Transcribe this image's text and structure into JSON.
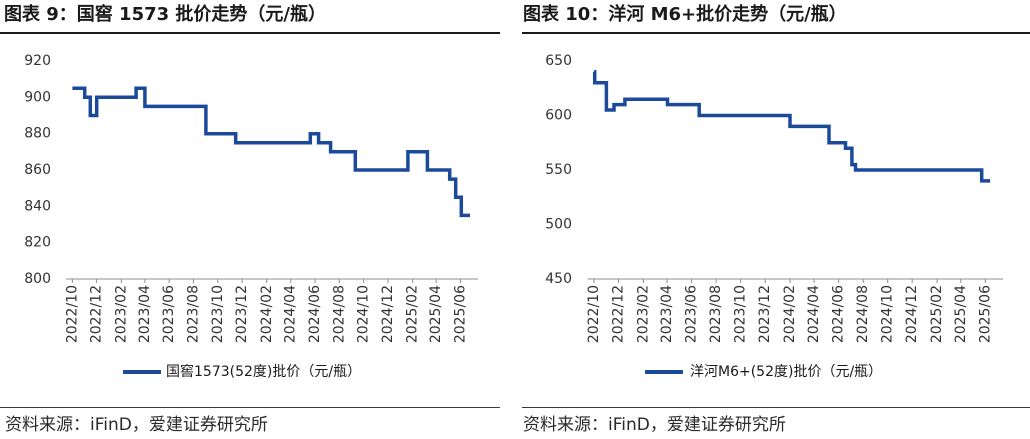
{
  "colors": {
    "line": "#1b4a9b",
    "axis": "#8c8c8c",
    "text": "#1a1a1a"
  },
  "sources": [
    "资料来源：iFinD，爱建证券研究所",
    "资料来源：iFinD，爱建证券研究所"
  ],
  "chart_data": [
    {
      "type": "line",
      "step": true,
      "title": "图表 9：国窖 1573 批价走势（元/瓶）",
      "ylim": [
        800,
        920
      ],
      "xlim": [
        "2022-09-15",
        "2025-07-15"
      ],
      "y_ticks": [
        800,
        820,
        840,
        860,
        880,
        900,
        920
      ],
      "x_ticks": [
        "2022/10",
        "2022/12",
        "2023/02",
        "2023/04",
        "2023/06",
        "2023/08",
        "2023/10",
        "2023/12",
        "2024/02",
        "2024/04",
        "2024/06",
        "2024/08",
        "2024/10",
        "2024/12",
        "2025/02",
        "2025/04",
        "2025/06"
      ],
      "grid": false,
      "legend": "bottom",
      "series": [
        {
          "name": "国窖1573(52度)批价（元/瓶）",
          "x": [
            "2022-10-01",
            "2022-11-01",
            "2022-11-15",
            "2022-12-01",
            "2023-03-10",
            "2023-04-01",
            "2023-09-01",
            "2023-11-15",
            "2024-05-20",
            "2024-06-10",
            "2024-07-10",
            "2024-09-10",
            "2025-01-20",
            "2025-03-10",
            "2025-05-05",
            "2025-05-20",
            "2025-06-03",
            "2025-06-25"
          ],
          "y": [
            905,
            900,
            890,
            900,
            905,
            895,
            880,
            875,
            880,
            875,
            870,
            860,
            870,
            860,
            855,
            845,
            835,
            835
          ]
        }
      ]
    },
    {
      "type": "line",
      "step": true,
      "title": "图表 10：洋河 M6+批价走势（元/瓶）",
      "ylim": [
        450,
        650
      ],
      "xlim": [
        "2022-09-15",
        "2025-07-15"
      ],
      "y_ticks": [
        450,
        500,
        550,
        600,
        650
      ],
      "x_ticks": [
        "2022/10",
        "2022/12",
        "2023/02",
        "2023/04",
        "2023/06",
        "2023/08",
        "2023/10",
        "2023/12",
        "2024/02",
        "2024/04",
        "2024/06",
        "2024/08",
        "2024/10",
        "2024/12",
        "2025/02",
        "2025/04",
        "2025/06"
      ],
      "grid": false,
      "legend": "bottom",
      "series": [
        {
          "name": "洋河M6+(52度)批价（元/瓶）",
          "x": [
            "2022-10-01",
            "2022-10-03",
            "2022-11-01",
            "2022-11-20",
            "2022-12-17",
            "2023-04-02",
            "2023-06-20",
            "2024-02-01",
            "2024-05-08",
            "2024-06-18",
            "2024-07-04",
            "2024-07-13",
            "2025-05-23",
            "2025-06-13"
          ],
          "y": [
            640,
            630,
            605,
            610,
            615,
            610,
            600,
            590,
            575,
            570,
            555,
            550,
            540,
            540
          ]
        }
      ]
    }
  ]
}
